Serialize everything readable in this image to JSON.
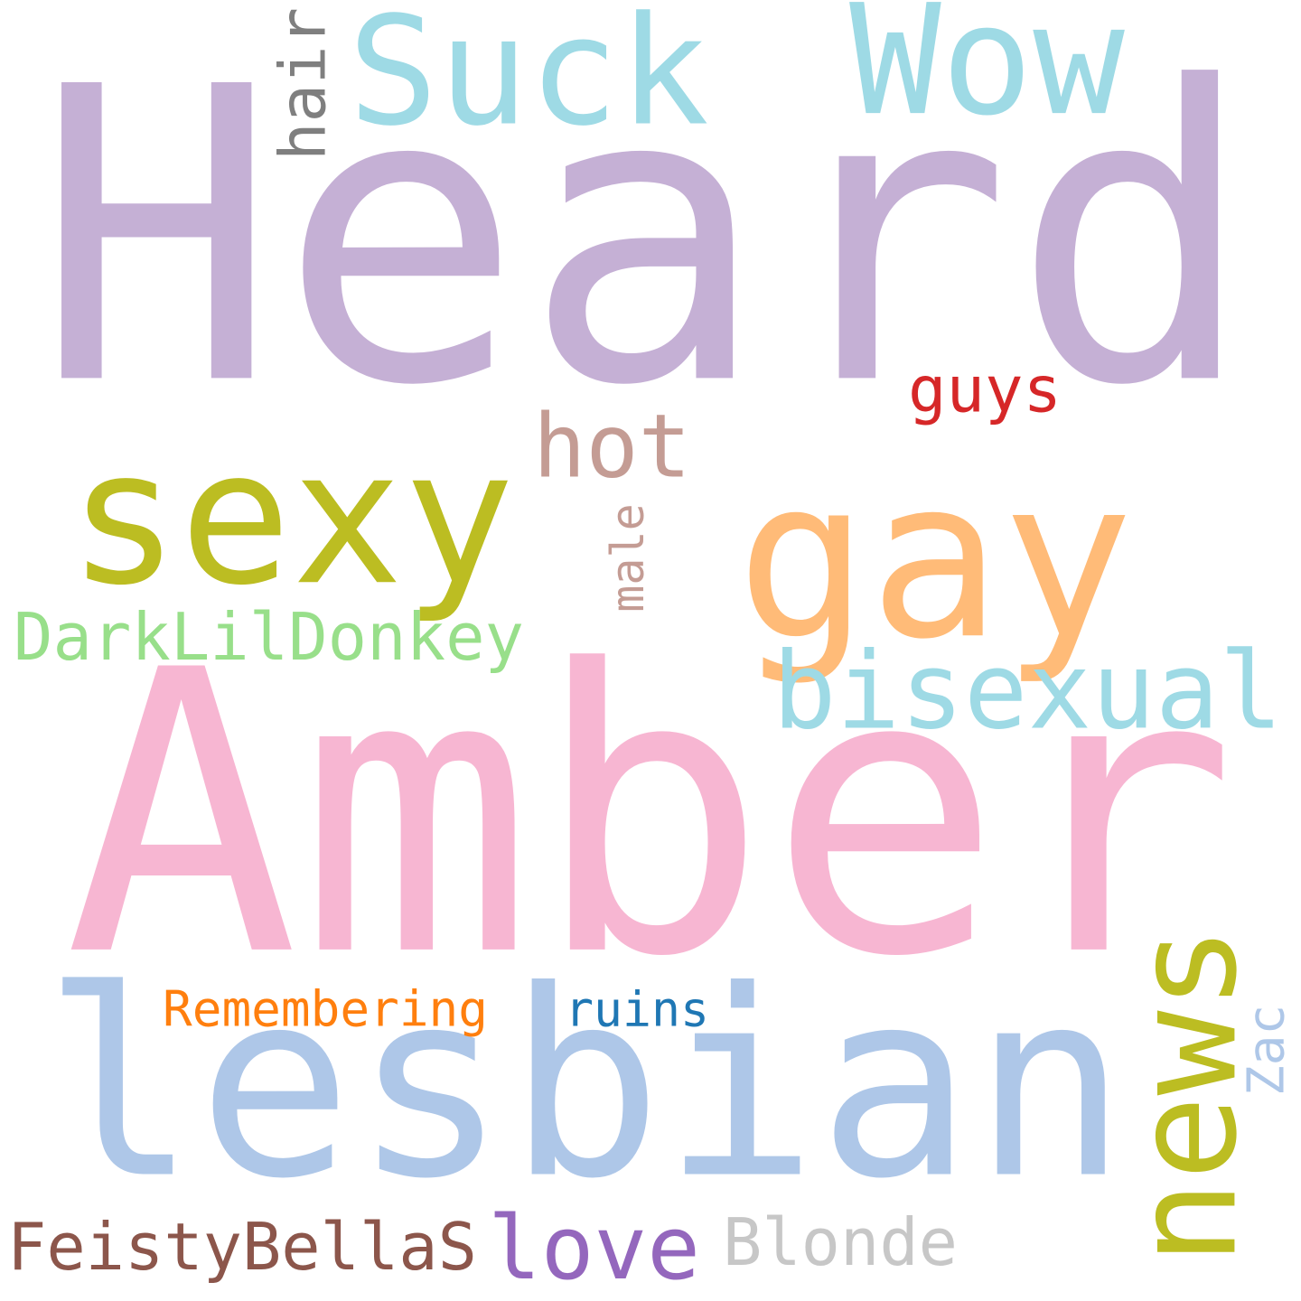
{
  "words": [
    {
      "text": "Heard",
      "color": "#c5b0d5",
      "orientation": "horizontal"
    },
    {
      "text": "Amber",
      "color": "#f7b6d2",
      "orientation": "horizontal"
    },
    {
      "text": "lesbian",
      "color": "#aec7e8",
      "orientation": "horizontal"
    },
    {
      "text": "gay",
      "color": "#ffbb78",
      "orientation": "horizontal"
    },
    {
      "text": "sexy",
      "color": "#bcbd22",
      "orientation": "horizontal"
    },
    {
      "text": "Suck",
      "color": "#9edae5",
      "orientation": "horizontal"
    },
    {
      "text": "Wow",
      "color": "#9edae5",
      "orientation": "horizontal"
    },
    {
      "text": "news",
      "color": "#bcbd22",
      "orientation": "vertical"
    },
    {
      "text": "bisexual",
      "color": "#9edae5",
      "orientation": "horizontal"
    },
    {
      "text": "hot",
      "color": "#c49c94",
      "orientation": "horizontal"
    },
    {
      "text": "guys",
      "color": "#d62728",
      "orientation": "horizontal"
    },
    {
      "text": "hair",
      "color": "#7f7f7f",
      "orientation": "vertical"
    },
    {
      "text": "male",
      "color": "#c49c94",
      "orientation": "vertical"
    },
    {
      "text": "DarkLilDonkey",
      "color": "#98df8a",
      "orientation": "horizontal"
    },
    {
      "text": "Remembering",
      "color": "#ff7f0e",
      "orientation": "horizontal"
    },
    {
      "text": "ruins",
      "color": "#1f77b4",
      "orientation": "horizontal"
    },
    {
      "text": "Zac",
      "color": "#aec7e8",
      "orientation": "vertical"
    },
    {
      "text": "FeistyBellaS",
      "color": "#8c564b",
      "orientation": "horizontal"
    },
    {
      "text": "love",
      "color": "#9467bd",
      "orientation": "horizontal"
    },
    {
      "text": "Blonde",
      "color": "#c7c7c7",
      "orientation": "horizontal"
    }
  ]
}
